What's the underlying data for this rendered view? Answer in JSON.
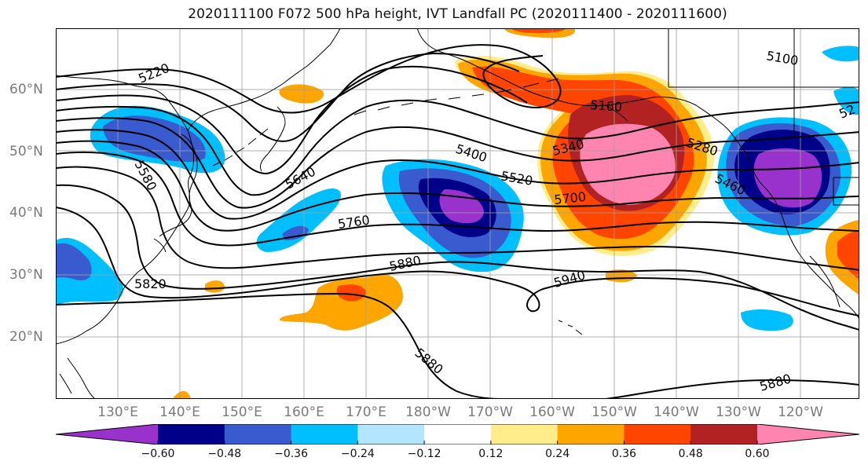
{
  "title": "2020111100 F072 500 hPa height, IVT Landfall PC (2020111400 - 2020111600)",
  "map": {
    "lat_labels": [
      "60°N",
      "50°N",
      "40°N",
      "30°N",
      "20°N"
    ],
    "lon_labels": [
      "130°E",
      "140°E",
      "150°E",
      "160°E",
      "170°E",
      "180°W",
      "170°W",
      "160°W",
      "150°W",
      "140°W",
      "130°W",
      "120°W"
    ],
    "contour_labels": [
      "5220",
      "5580",
      "5640",
      "5760",
      "5820",
      "5880",
      "5400",
      "5520",
      "5340",
      "5160",
      "5700",
      "5280",
      "5460",
      "5940",
      "5880",
      "5880",
      "5100",
      "52"
    ]
  },
  "colorbar": {
    "colors": [
      "#9932cc",
      "#000088",
      "#3a5bd0",
      "#00bfff",
      "#b3e5ff",
      "#ffffff",
      "#ffec8b",
      "#ffa500",
      "#ff4500",
      "#b22222",
      "#ff85b0"
    ],
    "tick_labels": [
      "−0.60",
      "−0.48",
      "−0.36",
      "−0.24",
      "−0.12",
      "0.12",
      "0.24",
      "0.36",
      "0.48",
      "0.60"
    ]
  }
}
